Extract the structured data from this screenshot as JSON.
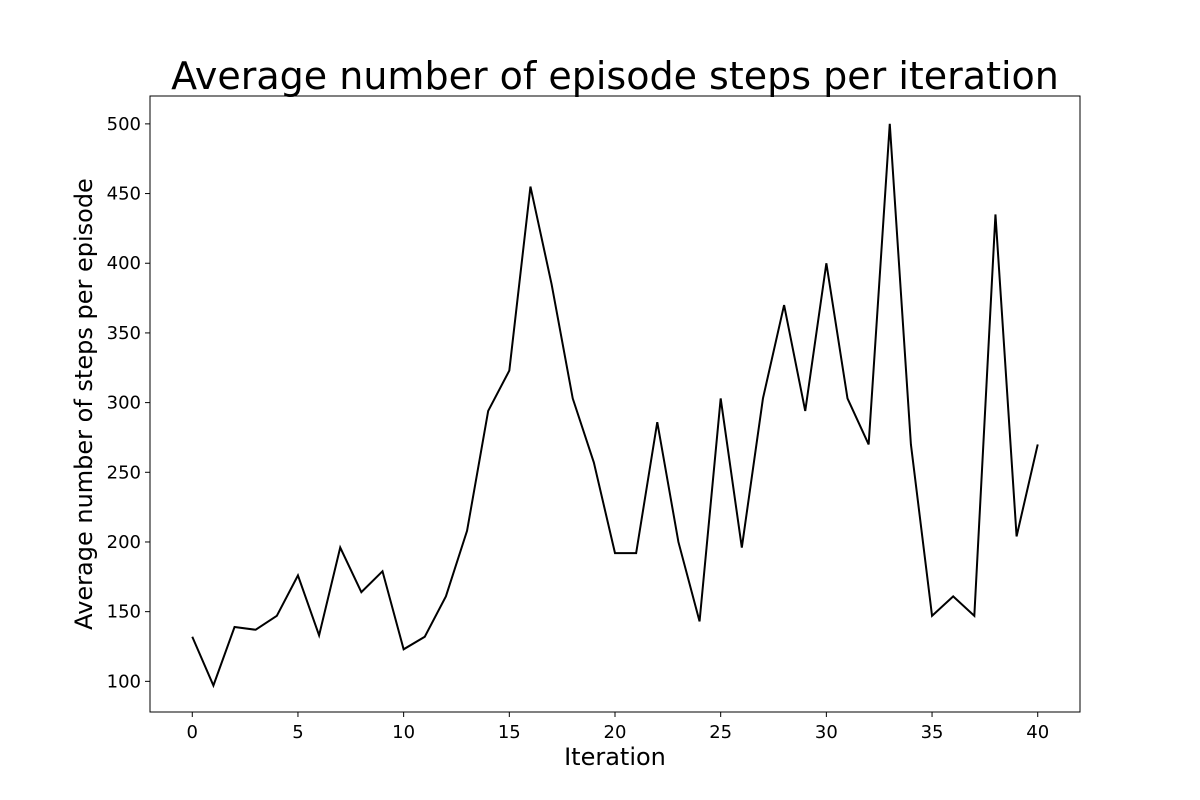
{
  "chart_data": {
    "type": "line",
    "title": "Average number of episode steps per iteration",
    "xlabel": "Iteration",
    "ylabel": "Average number of steps per episode",
    "xlim": [
      -2,
      42
    ],
    "ylim": [
      78,
      520
    ],
    "xticks": [
      0,
      5,
      10,
      15,
      20,
      25,
      30,
      35,
      40
    ],
    "yticks": [
      100,
      150,
      200,
      250,
      300,
      350,
      400,
      450,
      500
    ],
    "grid": false,
    "legend": "none",
    "series": [
      {
        "color": "#000000",
        "x": [
          0,
          1,
          2,
          3,
          4,
          5,
          6,
          7,
          8,
          9,
          10,
          11,
          12,
          13,
          14,
          15,
          16,
          17,
          18,
          19,
          20,
          21,
          22,
          23,
          24,
          25,
          26,
          27,
          28,
          29,
          30,
          31,
          32,
          33,
          34,
          35,
          36,
          37,
          38,
          39,
          40
        ],
        "values": [
          132,
          97,
          139,
          137,
          147,
          176,
          133,
          196,
          164,
          179,
          123,
          132,
          161,
          208,
          294,
          323,
          455,
          385,
          303,
          257,
          192,
          192,
          286,
          200,
          143,
          303,
          196,
          303,
          370,
          294,
          400,
          303,
          270,
          500,
          270,
          147,
          161,
          147,
          435,
          204,
          270
        ]
      }
    ]
  }
}
